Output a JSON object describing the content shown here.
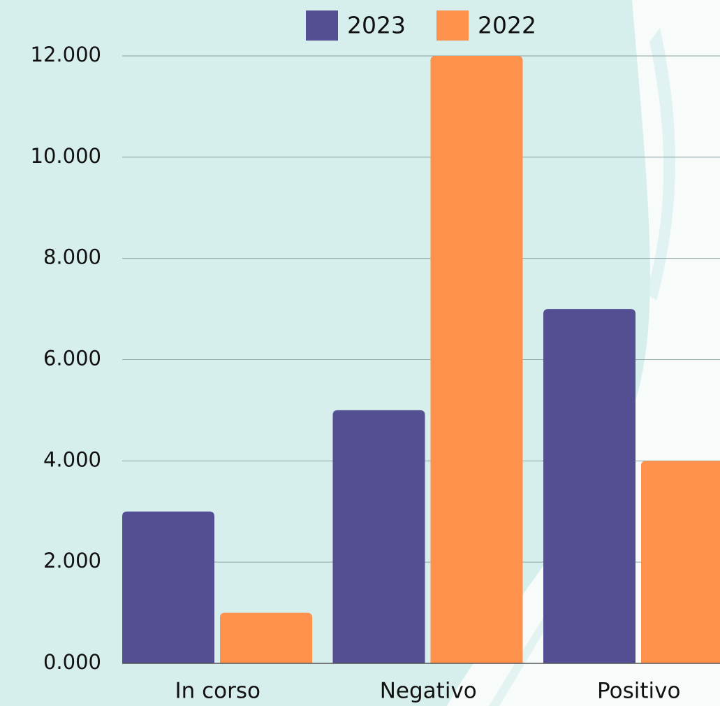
{
  "chart_data": {
    "type": "bar",
    "categories": [
      "In corso",
      "Negativo",
      "Positivo"
    ],
    "series": [
      {
        "name": "2023",
        "color": "#544f93",
        "values": [
          3000,
          5000,
          7000
        ]
      },
      {
        "name": "2022",
        "color": "#fe914b",
        "values": [
          1000,
          12000,
          4000
        ]
      }
    ],
    "ylim": [
      0,
      12000
    ],
    "yticks": [
      {
        "value": 0,
        "label": "0.000"
      },
      {
        "value": 2000,
        "label": "2.000"
      },
      {
        "value": 4000,
        "label": "4.000"
      },
      {
        "value": 6000,
        "label": "6.000"
      },
      {
        "value": 8000,
        "label": "8.000"
      },
      {
        "value": 10000,
        "label": "10.000"
      },
      {
        "value": 12000,
        "label": "12.000"
      }
    ],
    "grid": true,
    "legend": "top"
  }
}
